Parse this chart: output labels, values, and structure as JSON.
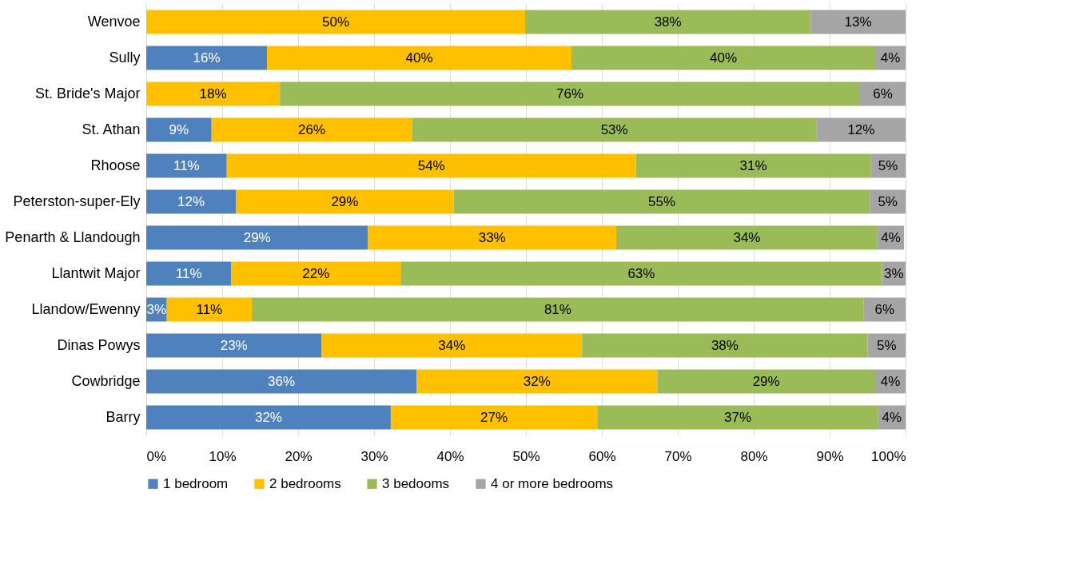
{
  "chart_data": {
    "type": "bar",
    "orientation": "horizontal",
    "stacked": true,
    "categories": [
      "Wenvoe",
      "Sully",
      "St. Bride's Major",
      "St. Athan",
      "Rhoose",
      "Peterston-super-Ely",
      "Penarth & Llandough",
      "Llantwit Major",
      "Llandow/Ewenny",
      "Dinas Powys",
      "Cowbridge",
      "Barry"
    ],
    "series": [
      {
        "name": "1 bedroom",
        "color": "#4f81bd",
        "values": [
          0,
          15.9,
          0,
          8.6,
          10.6,
          11.8,
          29.2,
          11.2,
          2.7,
          23.1,
          35.6,
          32.2
        ],
        "value_labels": [
          null,
          "16%",
          null,
          "9%",
          "11%",
          "12%",
          "29%",
          "11%",
          "3%",
          "23%",
          "36%",
          "32%"
        ]
      },
      {
        "name": "2 bedrooms",
        "color": "#ffc000",
        "values": [
          49.9,
          40.1,
          17.6,
          26.4,
          53.9,
          28.7,
          32.7,
          22.3,
          11.2,
          34.3,
          31.7,
          27.2
        ],
        "value_labels": [
          "50%",
          "40%",
          "18%",
          "26%",
          "54%",
          "29%",
          "33%",
          "22%",
          "11%",
          "34%",
          "32%",
          "27%"
        ]
      },
      {
        "name": "3 bedooms",
        "color": "#9bbb59",
        "values": [
          37.6,
          40.0,
          76.4,
          53.3,
          30.9,
          54.8,
          34.4,
          63.4,
          80.6,
          37.6,
          28.7,
          37.0
        ],
        "value_labels": [
          "38%",
          "40%",
          "76%",
          "53%",
          "31%",
          "55%",
          "34%",
          "63%",
          "81%",
          "38%",
          "29%",
          "37%"
        ]
      },
      {
        "name": "4 or more bedrooms",
        "color": "#a5a5a5",
        "values": [
          12.5,
          4.0,
          6.0,
          11.7,
          4.6,
          4.7,
          3.5,
          3.1,
          5.5,
          5.0,
          4.0,
          3.6
        ],
        "value_labels": [
          "13%",
          "4%",
          "6%",
          "12%",
          "5%",
          "5%",
          "4%",
          "3%",
          "6%",
          "5%",
          "4%",
          "4%"
        ]
      }
    ],
    "xlim": [
      0,
      100
    ],
    "xticks": [
      {
        "value": 0,
        "label": "0%"
      },
      {
        "value": 10,
        "label": "10%"
      },
      {
        "value": 20,
        "label": "20%"
      },
      {
        "value": 30,
        "label": "30%"
      },
      {
        "value": 40,
        "label": "40%"
      },
      {
        "value": 50,
        "label": "50%"
      },
      {
        "value": 60,
        "label": "60%"
      },
      {
        "value": 70,
        "label": "70%"
      },
      {
        "value": 80,
        "label": "80%"
      },
      {
        "value": 90,
        "label": "90%"
      },
      {
        "value": 100,
        "label": "100%"
      }
    ],
    "grid": "x",
    "legend": "bottom"
  }
}
